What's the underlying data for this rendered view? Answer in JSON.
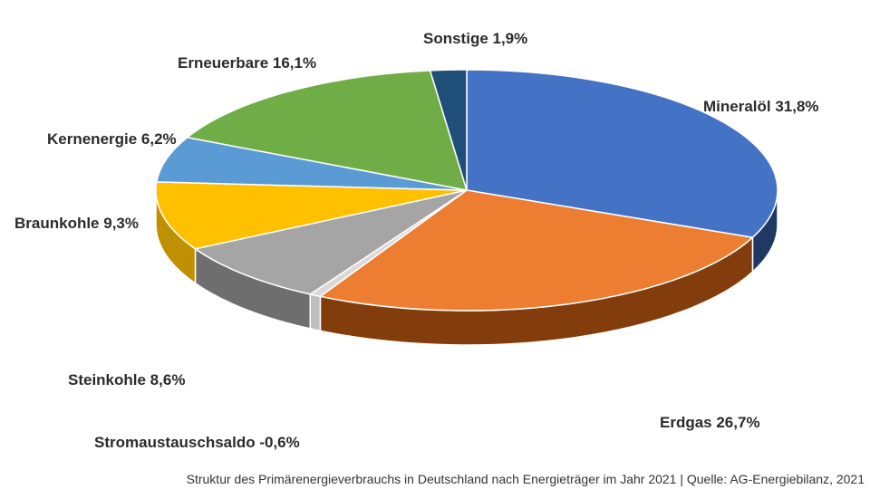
{
  "chart_data": {
    "type": "pie",
    "title": "",
    "source_caption": "Struktur des Primärenergieverbrauchs in Deutschland nach Energieträger im Jahr 2021  | Quelle: AG-Energiebilanz, 2021",
    "slices": [
      {
        "name": "Mineralöl",
        "value": 31.8,
        "label": "Mineralöl 31,8%",
        "color": "#4472C4",
        "side_color": "#1F3864"
      },
      {
        "name": "Erdgas",
        "value": 26.7,
        "label": "Erdgas 26,7%",
        "color": "#ED7D31",
        "side_color": "#833C0B"
      },
      {
        "name": "Stromaustauschsaldo",
        "value": -0.6,
        "label": "Stromaustauschsaldo -0,6%",
        "color": "#D9D9D9",
        "side_color": "#BFBFBF"
      },
      {
        "name": "Steinkohle",
        "value": 8.6,
        "label": "Steinkohle 8,6%",
        "color": "#A5A5A5",
        "side_color": "#6E6E6E"
      },
      {
        "name": "Braunkohle",
        "value": 9.3,
        "label": "Braunkohle 9,3%",
        "color": "#FFC000",
        "side_color": "#BF9000"
      },
      {
        "name": "Kernenergie",
        "value": 6.2,
        "label": "Kernenergie 6,2%",
        "color": "#5B9BD5",
        "side_color": "#2E75B6"
      },
      {
        "name": "Erneuerbare",
        "value": 16.1,
        "label": "Erneuerbare 16,1%",
        "color": "#70AD47",
        "side_color": "#385723"
      },
      {
        "name": "Sonstige",
        "value": 1.9,
        "label": "Sonstige 1,9%",
        "color": "#1F4E79",
        "side_color": "#0F2640"
      }
    ]
  }
}
